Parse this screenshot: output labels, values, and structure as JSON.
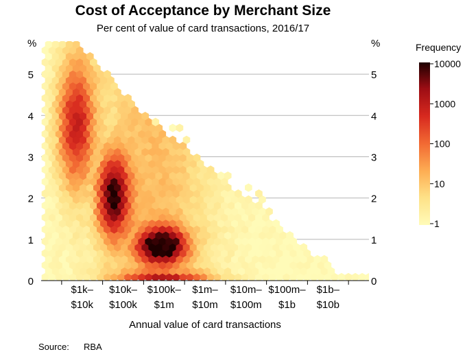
{
  "chart_data": {
    "type": "heatmap",
    "subtype": "hexbin",
    "title": "Cost of Acceptance by Merchant Size",
    "subtitle": "Per cent of value of card transactions, 2016/17",
    "xlabel": "Annual value of card transactions",
    "y_unit_label": "%",
    "xlim": [
      2.5,
      10.5
    ],
    "ylim": [
      0,
      5.8
    ],
    "y_ticks": [
      0,
      1,
      2,
      3,
      4,
      5
    ],
    "x_categories": [
      {
        "line1": "$1k–",
        "line2": "$10k"
      },
      {
        "line1": "$10k–",
        "line2": "$100k"
      },
      {
        "line1": "$100k–",
        "line2": "$1m"
      },
      {
        "line1": "$1m–",
        "line2": "$10m"
      },
      {
        "line1": "$10m–",
        "line2": "$100m"
      },
      {
        "line1": "$100m–",
        "line2": "$1b"
      },
      {
        "line1": "$1b–",
        "line2": "$10b"
      }
    ],
    "grid": "horizontal",
    "legend": {
      "title": "Frequency",
      "scale": "log",
      "range": [
        1,
        10000
      ],
      "ticks": [
        "10000",
        "1000",
        "100",
        "10",
        "1"
      ],
      "colors": [
        "#fffbb8",
        "#fee187",
        "#fdae54",
        "#f26a33",
        "#d7291f",
        "#9c0d14",
        "#1e0000"
      ]
    },
    "density_peak": {
      "x": 5.45,
      "y": 0.85,
      "frequency": 10000
    }
  },
  "source": {
    "label": "Source:",
    "value": "RBA"
  }
}
